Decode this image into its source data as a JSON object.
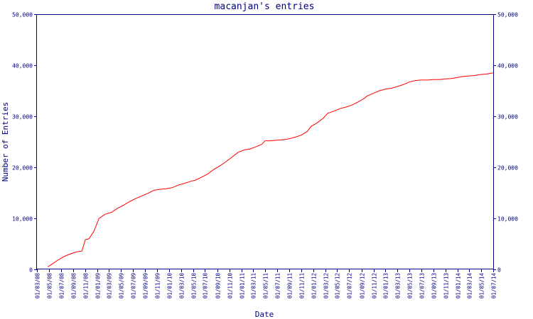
{
  "chart_data": {
    "type": "line",
    "title": "macanjan's entries",
    "xlabel": "Date",
    "ylabel": "Number of Entries",
    "ylim": [
      0,
      50000
    ],
    "y_ticks": [
      0,
      10000,
      20000,
      30000,
      40000,
      50000
    ],
    "y_tick_labels": [
      "0",
      "10,000",
      "20,000",
      "30,000",
      "40,000",
      "50,000"
    ],
    "x_tick_labels": [
      "01/03/08",
      "01/05/08",
      "01/07/08",
      "01/09/08",
      "01/11/08",
      "01/01/09",
      "01/03/09",
      "01/05/09",
      "01/07/09",
      "01/09/09",
      "01/11/09",
      "01/01/10",
      "01/03/10",
      "01/05/10",
      "01/07/10",
      "01/09/10",
      "01/11/10",
      "01/01/11",
      "01/03/11",
      "01/05/11",
      "01/07/11",
      "01/09/11",
      "01/11/11",
      "01/01/12",
      "01/03/12",
      "01/05/12",
      "01/07/12",
      "01/09/12",
      "01/11/12",
      "01/01/13",
      "01/03/13",
      "01/05/13",
      "01/07/13",
      "01/09/13",
      "01/11/13",
      "01/01/14",
      "01/03/14",
      "01/05/14",
      "01/07/14"
    ],
    "grid": false,
    "series": [
      {
        "color": "#ff0000",
        "points": [
          [
            "2008-04-25",
            500
          ],
          [
            "2008-05-15",
            1000
          ],
          [
            "2008-06-15",
            1800
          ],
          [
            "2008-07-15",
            2500
          ],
          [
            "2008-08-15",
            3000
          ],
          [
            "2008-09-15",
            3400
          ],
          [
            "2008-10-15",
            3600
          ],
          [
            "2008-11-01",
            5800
          ],
          [
            "2008-11-20",
            6000
          ],
          [
            "2008-12-15",
            7500
          ],
          [
            "2009-01-10",
            10000
          ],
          [
            "2009-02-10",
            10800
          ],
          [
            "2009-03-15",
            11200
          ],
          [
            "2009-04-15",
            12000
          ],
          [
            "2009-05-15",
            12600
          ],
          [
            "2009-06-15",
            13300
          ],
          [
            "2009-07-15",
            13900
          ],
          [
            "2009-08-15",
            14400
          ],
          [
            "2009-09-15",
            14900
          ],
          [
            "2009-10-15",
            15500
          ],
          [
            "2009-11-15",
            15700
          ],
          [
            "2009-12-15",
            15800
          ],
          [
            "2010-01-15",
            16000
          ],
          [
            "2010-02-15",
            16500
          ],
          [
            "2010-03-15",
            16800
          ],
          [
            "2010-04-15",
            17200
          ],
          [
            "2010-05-15",
            17500
          ],
          [
            "2010-06-15",
            18100
          ],
          [
            "2010-07-15",
            18700
          ],
          [
            "2010-08-15",
            19600
          ],
          [
            "2010-09-15",
            20300
          ],
          [
            "2010-10-15",
            21100
          ],
          [
            "2010-11-15",
            22000
          ],
          [
            "2010-12-15",
            22900
          ],
          [
            "2011-01-15",
            23400
          ],
          [
            "2011-02-15",
            23600
          ],
          [
            "2011-03-15",
            24000
          ],
          [
            "2011-04-15",
            24500
          ],
          [
            "2011-05-01",
            25200
          ],
          [
            "2011-06-01",
            25200
          ],
          [
            "2011-07-01",
            25300
          ],
          [
            "2011-08-01",
            25400
          ],
          [
            "2011-09-01",
            25600
          ],
          [
            "2011-10-01",
            25900
          ],
          [
            "2011-11-01",
            26300
          ],
          [
            "2011-12-01",
            27000
          ],
          [
            "2011-12-20",
            28000
          ],
          [
            "2012-01-20",
            28700
          ],
          [
            "2012-02-20",
            29600
          ],
          [
            "2012-03-15",
            30600
          ],
          [
            "2012-04-15",
            31000
          ],
          [
            "2012-05-15",
            31500
          ],
          [
            "2012-06-15",
            31800
          ],
          [
            "2012-07-15",
            32200
          ],
          [
            "2012-08-15",
            32800
          ],
          [
            "2012-09-15",
            33500
          ],
          [
            "2012-10-01",
            34000
          ],
          [
            "2012-11-01",
            34500
          ],
          [
            "2012-12-01",
            35000
          ],
          [
            "2013-01-01",
            35300
          ],
          [
            "2013-02-01",
            35500
          ],
          [
            "2013-03-01",
            35800
          ],
          [
            "2013-04-01",
            36200
          ],
          [
            "2013-05-01",
            36700
          ],
          [
            "2013-06-01",
            37000
          ],
          [
            "2013-07-01",
            37100
          ],
          [
            "2013-08-01",
            37100
          ],
          [
            "2013-09-01",
            37200
          ],
          [
            "2013-10-01",
            37200
          ],
          [
            "2013-11-01",
            37300
          ],
          [
            "2013-12-01",
            37400
          ],
          [
            "2014-01-01",
            37600
          ],
          [
            "2014-02-01",
            37800
          ],
          [
            "2014-03-01",
            37900
          ],
          [
            "2014-04-01",
            38000
          ],
          [
            "2014-05-01",
            38200
          ],
          [
            "2014-06-01",
            38300
          ],
          [
            "2014-07-01",
            38500
          ]
        ]
      }
    ]
  }
}
